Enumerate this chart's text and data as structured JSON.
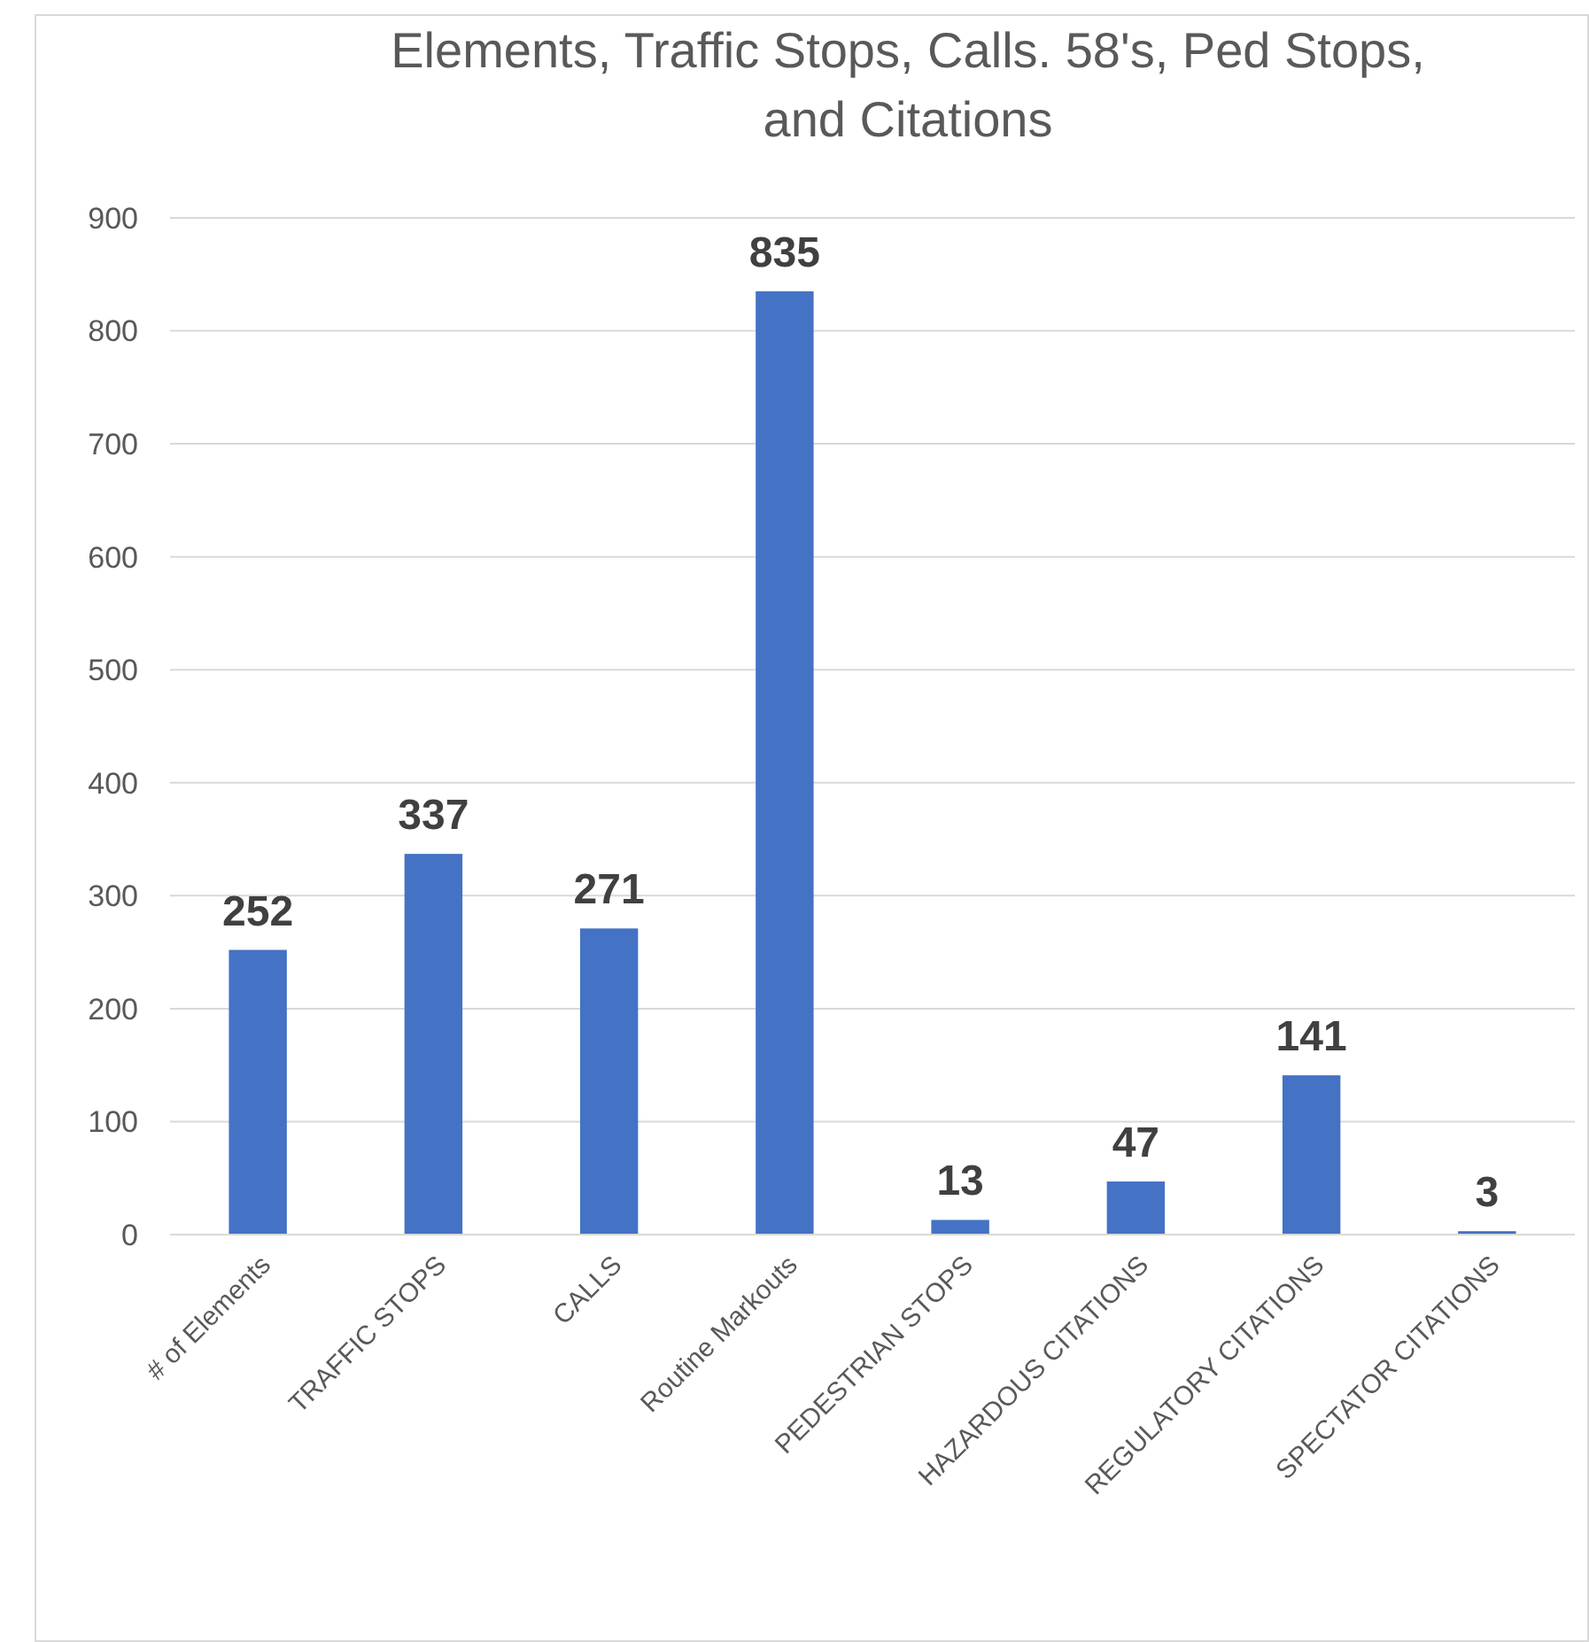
{
  "chart_data": {
    "type": "bar",
    "title": "Elements, Traffic Stops, Calls. 58's, Ped Stops, and Citations",
    "categories": [
      "# of Elements",
      "TRAFFIC STOPS",
      "CALLS",
      "Routine Markouts",
      "PEDESTRIAN STOPS",
      "HAZARDOUS CITATIONS",
      "REGULATORY CITATIONS",
      "SPECTATOR CITATIONS"
    ],
    "values": [
      252,
      337,
      271,
      835,
      13,
      47,
      141,
      3
    ],
    "color": "#4472c4",
    "ylim": [
      0,
      900
    ],
    "yticks": [
      0,
      100,
      200,
      300,
      400,
      500,
      600,
      700,
      800,
      900
    ],
    "grid": "y",
    "data_labels": true
  }
}
